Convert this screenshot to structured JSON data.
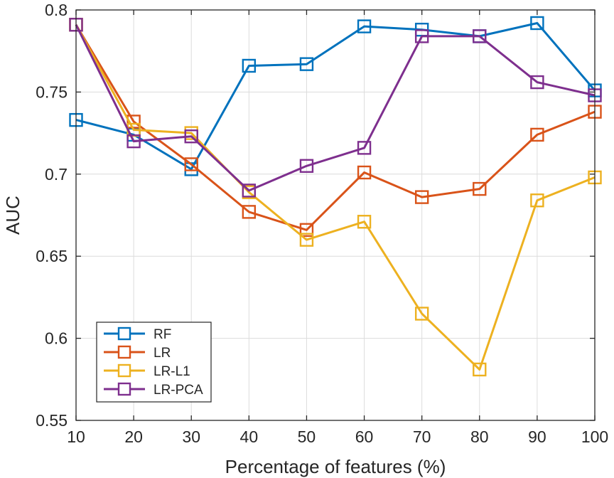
{
  "chart_data": {
    "type": "line",
    "xlabel": "Percentage of features (%)",
    "ylabel": "AUC",
    "x": [
      10,
      20,
      30,
      40,
      50,
      60,
      70,
      80,
      90,
      100
    ],
    "xlim": [
      10,
      100
    ],
    "ylim": [
      0.55,
      0.8
    ],
    "xticks": [
      10,
      20,
      30,
      40,
      50,
      60,
      70,
      80,
      90,
      100
    ],
    "xtick_labels": [
      "10",
      "20",
      "30",
      "40",
      "50",
      "60",
      "70",
      "80",
      "90",
      "100"
    ],
    "yticks": [
      0.55,
      0.6,
      0.65,
      0.7,
      0.75,
      0.8
    ],
    "ytick_labels": [
      "0.55",
      "0.6",
      "0.65",
      "0.7",
      "0.75",
      "0.8"
    ],
    "grid": true,
    "marker": "square",
    "legend_position": "bottom-left",
    "series": [
      {
        "name": "RF",
        "color": "#0072BD",
        "values": [
          0.733,
          0.724,
          0.703,
          0.766,
          0.767,
          0.79,
          0.788,
          0.784,
          0.792,
          0.751
        ]
      },
      {
        "name": "LR",
        "color": "#D95319",
        "values": [
          0.791,
          0.732,
          0.706,
          0.677,
          0.666,
          0.701,
          0.686,
          0.691,
          0.724,
          0.738
        ]
      },
      {
        "name": "LR-L1",
        "color": "#EDB120",
        "values": [
          0.791,
          0.727,
          0.725,
          0.689,
          0.66,
          0.671,
          0.615,
          0.581,
          0.684,
          0.698
        ]
      },
      {
        "name": "LR-PCA",
        "color": "#7E2F8E",
        "values": [
          0.791,
          0.72,
          0.723,
          0.69,
          0.705,
          0.716,
          0.784,
          0.784,
          0.756,
          0.748
        ]
      }
    ]
  }
}
